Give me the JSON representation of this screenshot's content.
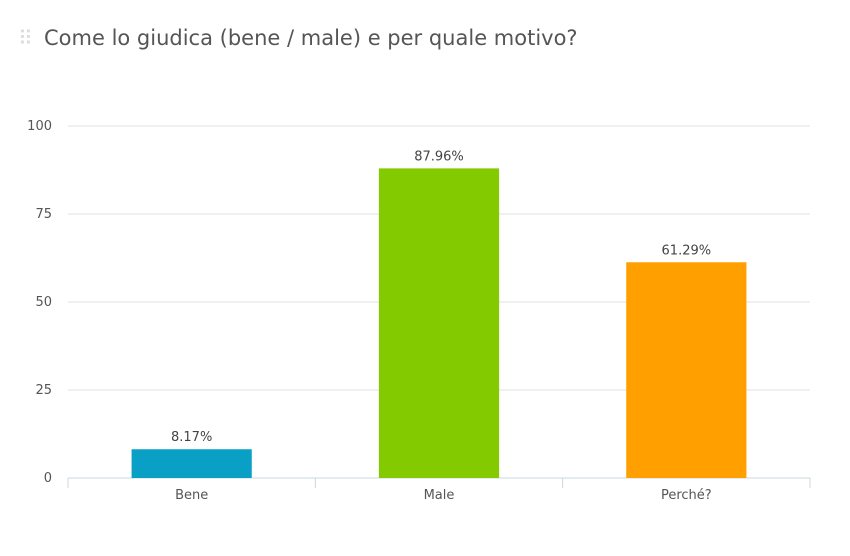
{
  "title": "Come lo giudica (bene / male) e per quale motivo?",
  "drag_handle_icon": "drag-handle-icon",
  "chart_data": {
    "type": "bar",
    "title": "Come lo giudica (bene / male) e per quale motivo?",
    "xlabel": "",
    "ylabel": "",
    "ylim": [
      0,
      100
    ],
    "yticks": [
      0,
      25,
      50,
      75,
      100
    ],
    "ytick_labels": [
      "0",
      "25",
      "50",
      "75",
      "100"
    ],
    "grid": true,
    "categories": [
      "Bene",
      "Male",
      "Perché?"
    ],
    "values": [
      8.17,
      87.96,
      61.29
    ],
    "data_labels": [
      "8.17%",
      "87.96%",
      "61.29%"
    ],
    "colors": [
      "#0aa0c6",
      "#83cb00",
      "#ffa000"
    ],
    "grid_color": "#e0e0e0",
    "axis_color": "#c8d8e0"
  }
}
